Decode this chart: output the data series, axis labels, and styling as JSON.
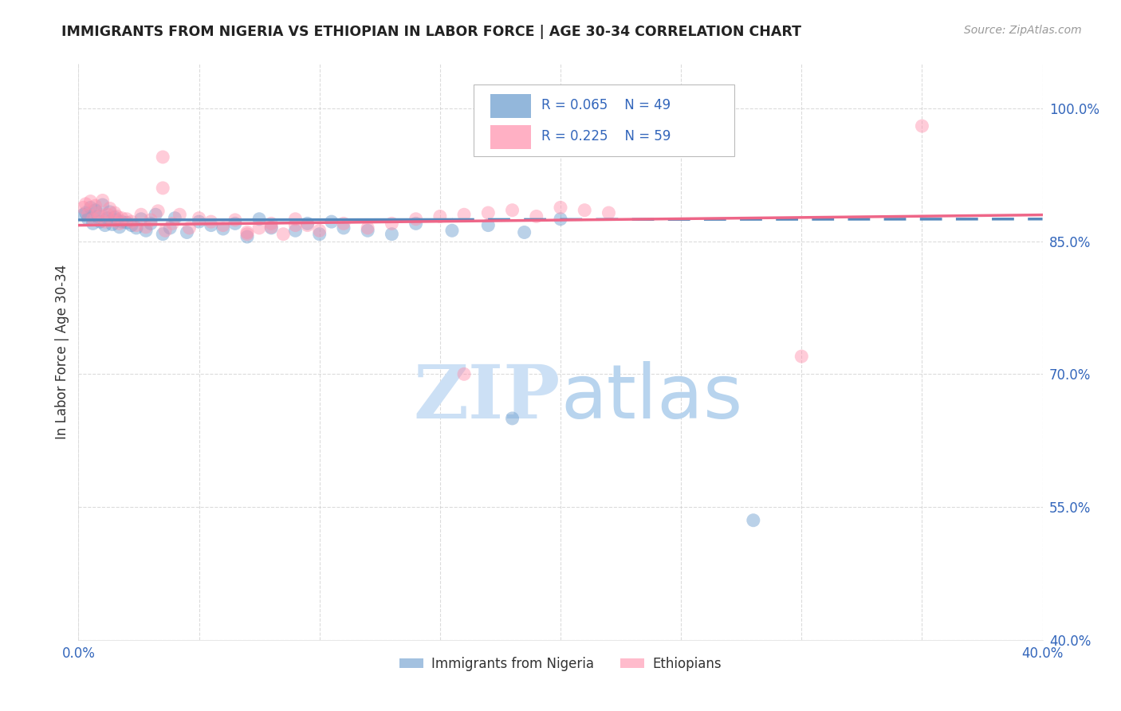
{
  "title": "IMMIGRANTS FROM NIGERIA VS ETHIOPIAN IN LABOR FORCE | AGE 30-34 CORRELATION CHART",
  "source": "Source: ZipAtlas.com",
  "ylabel": "In Labor Force | Age 30-34",
  "xlim": [
    0.0,
    0.4
  ],
  "ylim": [
    0.4,
    1.05
  ],
  "nigeria_R": 0.065,
  "nigeria_N": 49,
  "ethiopia_R": 0.225,
  "ethiopia_N": 59,
  "nigeria_color": "#6699CC",
  "ethiopia_color": "#FF8FAB",
  "nigeria_line_color": "#5588BB",
  "ethiopia_line_color": "#EE6688",
  "legend_label_nigeria": "Immigrants from Nigeria",
  "legend_label_ethiopia": "Ethiopians",
  "nigeria_x": [
    0.002,
    0.003,
    0.004,
    0.005,
    0.006,
    0.007,
    0.008,
    0.009,
    0.01,
    0.011,
    0.012,
    0.013,
    0.014,
    0.015,
    0.016,
    0.017,
    0.018,
    0.02,
    0.022,
    0.024,
    0.026,
    0.028,
    0.03,
    0.032,
    0.035,
    0.038,
    0.04,
    0.045,
    0.05,
    0.055,
    0.06,
    0.065,
    0.07,
    0.075,
    0.08,
    0.09,
    0.095,
    0.1,
    0.105,
    0.11,
    0.12,
    0.13,
    0.14,
    0.155,
    0.17,
    0.185,
    0.2,
    0.28,
    0.18
  ],
  "nigeria_y": [
    0.88,
    0.882,
    0.875,
    0.888,
    0.87,
    0.885,
    0.878,
    0.872,
    0.891,
    0.868,
    0.876,
    0.883,
    0.869,
    0.877,
    0.874,
    0.866,
    0.872,
    0.871,
    0.868,
    0.865,
    0.875,
    0.862,
    0.87,
    0.88,
    0.858,
    0.865,
    0.876,
    0.86,
    0.872,
    0.868,
    0.864,
    0.87,
    0.855,
    0.875,
    0.865,
    0.862,
    0.87,
    0.858,
    0.872,
    0.865,
    0.862,
    0.858,
    0.87,
    0.862,
    0.868,
    0.86,
    0.875,
    0.535,
    0.65
  ],
  "ethiopia_x": [
    0.002,
    0.003,
    0.004,
    0.005,
    0.006,
    0.007,
    0.008,
    0.009,
    0.01,
    0.011,
    0.012,
    0.013,
    0.014,
    0.015,
    0.016,
    0.017,
    0.018,
    0.02,
    0.022,
    0.024,
    0.026,
    0.028,
    0.03,
    0.033,
    0.036,
    0.039,
    0.042,
    0.046,
    0.05,
    0.055,
    0.06,
    0.065,
    0.07,
    0.08,
    0.09,
    0.1,
    0.11,
    0.12,
    0.13,
    0.14,
    0.15,
    0.16,
    0.17,
    0.18,
    0.19,
    0.2,
    0.21,
    0.22,
    0.035,
    0.3,
    0.07,
    0.035,
    0.075,
    0.08,
    0.085,
    0.09,
    0.095,
    0.35,
    0.16
  ],
  "ethiopia_y": [
    0.888,
    0.892,
    0.88,
    0.895,
    0.875,
    0.89,
    0.882,
    0.878,
    0.896,
    0.872,
    0.88,
    0.887,
    0.873,
    0.882,
    0.878,
    0.87,
    0.876,
    0.875,
    0.872,
    0.868,
    0.88,
    0.866,
    0.874,
    0.884,
    0.862,
    0.87,
    0.88,
    0.865,
    0.876,
    0.872,
    0.868,
    0.874,
    0.86,
    0.866,
    0.868,
    0.862,
    0.87,
    0.865,
    0.87,
    0.875,
    0.878,
    0.88,
    0.882,
    0.885,
    0.878,
    0.888,
    0.885,
    0.882,
    0.945,
    0.72,
    0.858,
    0.91,
    0.865,
    0.87,
    0.858,
    0.875,
    0.868,
    0.98,
    0.7
  ]
}
